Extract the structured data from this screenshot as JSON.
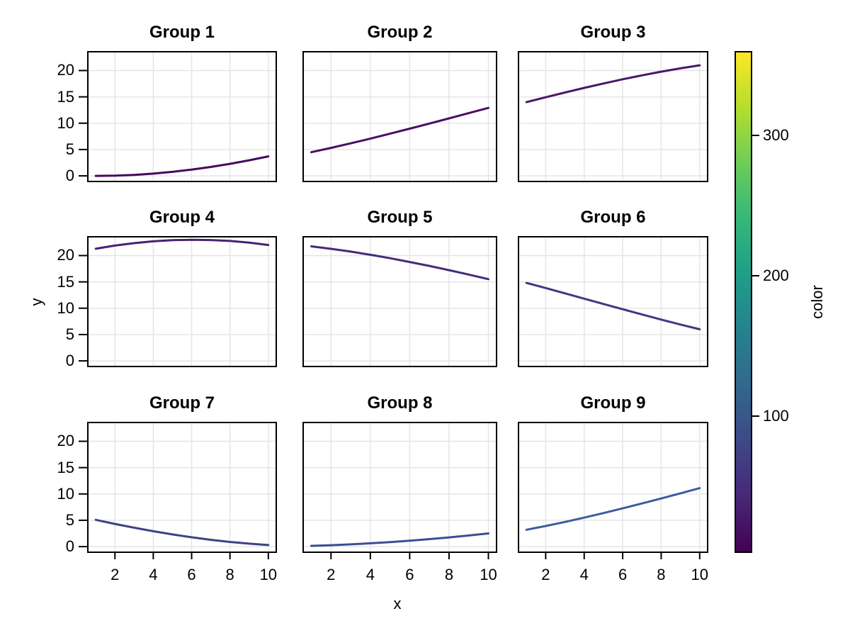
{
  "chart_data": {
    "type": "line",
    "xlabel": "x",
    "ylabel": "y",
    "x": [
      1,
      2,
      3,
      4,
      5,
      6,
      7,
      8,
      9,
      10
    ],
    "xticks": [
      2,
      4,
      6,
      8,
      10
    ],
    "yticks": [
      0,
      5,
      10,
      15,
      20
    ],
    "xlim": [
      0.55,
      10.45
    ],
    "ylim": [
      -1.2,
      23.7
    ],
    "grid": true,
    "facets": [
      {
        "title": "Group 1",
        "line_color": "#46085c",
        "y": [
          0.0,
          0.05,
          0.19,
          0.43,
          0.77,
          1.19,
          1.7,
          2.29,
          2.96,
          3.7
        ]
      },
      {
        "title": "Group 2",
        "line_color": "#470f62",
        "y": [
          4.5,
          5.31,
          6.17,
          7.07,
          8.0,
          8.96,
          9.93,
          10.92,
          11.91,
          12.9
        ]
      },
      {
        "title": "Group 3",
        "line_color": "#48186a",
        "y": [
          13.99,
          14.92,
          15.83,
          16.7,
          17.54,
          18.34,
          19.09,
          19.79,
          20.42,
          21.0
        ]
      },
      {
        "title": "Group 4",
        "line_color": "#482173",
        "y": [
          21.29,
          21.89,
          22.36,
          22.7,
          22.92,
          23.0,
          22.95,
          22.77,
          22.45,
          22.01
        ]
      },
      {
        "title": "Group 5",
        "line_color": "#462a7b",
        "y": [
          21.75,
          21.28,
          20.75,
          20.15,
          19.5,
          18.78,
          18.03,
          17.22,
          16.39,
          15.51
        ]
      },
      {
        "title": "Group 6",
        "line_color": "#423681",
        "y": [
          14.81,
          13.83,
          12.83,
          11.82,
          10.81,
          9.81,
          8.82,
          7.84,
          6.9,
          6.0
        ]
      },
      {
        "title": "Group 7",
        "line_color": "#3d4287",
        "y": [
          5.09,
          4.31,
          3.59,
          2.92,
          2.31,
          1.77,
          1.29,
          0.89,
          0.56,
          0.3
        ]
      },
      {
        "title": "Group 8",
        "line_color": "#3a4f94",
        "y": [
          0.15,
          0.27,
          0.43,
          0.63,
          0.86,
          1.12,
          1.42,
          1.75,
          2.11,
          2.5
        ]
      },
      {
        "title": "Group 9",
        "line_color": "#3d5b9e",
        "y": [
          3.2,
          3.91,
          4.68,
          5.5,
          6.36,
          7.26,
          8.19,
          9.14,
          10.12,
          11.1
        ]
      }
    ],
    "colorbar": {
      "label": "color",
      "ticks": [
        100,
        200,
        300
      ],
      "gradient_bottom_to_top": [
        "#440154",
        "#482878",
        "#3e4989",
        "#31688e",
        "#26828e",
        "#1f9e89",
        "#35b779",
        "#6dcd59",
        "#b4de2c",
        "#fde725"
      ]
    },
    "style": {
      "grid_color": "#e4e4e4",
      "frame_color": "#000000",
      "background": "#ffffff"
    }
  }
}
